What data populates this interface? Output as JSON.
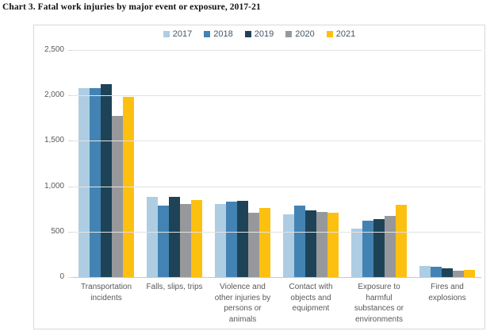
{
  "title": "Chart 3. Fatal work injuries by major event or exposure, 2017-21",
  "colors": {
    "series_2017": "#aecde3",
    "series_2018": "#4383b4",
    "series_2019": "#1e4357",
    "series_2020": "#97989c",
    "series_2021": "#fdc010",
    "gridline": "#e3e3e3",
    "axis_text": "#595959",
    "legend_text": "#44546a"
  },
  "chart_data": {
    "type": "bar",
    "title": "Chart 3. Fatal work injuries by major event or exposure, 2017-21",
    "categories": [
      "Transportation incidents",
      "Falls, slips, trips",
      "Violence and other injuries by persons or animals",
      "Contact with objects and equipment",
      "Exposure to harmful substances or environments",
      "Fires and explosions"
    ],
    "series": [
      {
        "name": "2017",
        "color": "#aecde3",
        "values": [
          2077,
          887,
          807,
          695,
          531,
          123
        ]
      },
      {
        "name": "2018",
        "color": "#4383b4",
        "values": [
          2080,
          791,
          828,
          786,
          621,
          115
        ]
      },
      {
        "name": "2019",
        "color": "#1e4357",
        "values": [
          2122,
          880,
          841,
          732,
          642,
          99
        ]
      },
      {
        "name": "2020",
        "color": "#97989c",
        "values": [
          1778,
          805,
          705,
          716,
          672,
          73
        ]
      },
      {
        "name": "2021",
        "color": "#fdc010",
        "values": [
          1982,
          850,
          761,
          705,
          798,
          76
        ]
      }
    ],
    "xlabel": "",
    "ylabel": "",
    "ylim": [
      0,
      2500
    ],
    "y_tick_values": [
      0,
      500,
      1000,
      1500,
      2000,
      2500
    ],
    "y_tick_labels": [
      "0",
      "500",
      "1,000",
      "1,500",
      "2,000",
      "2,500"
    ],
    "grid": true,
    "legend_position": "top-center"
  }
}
